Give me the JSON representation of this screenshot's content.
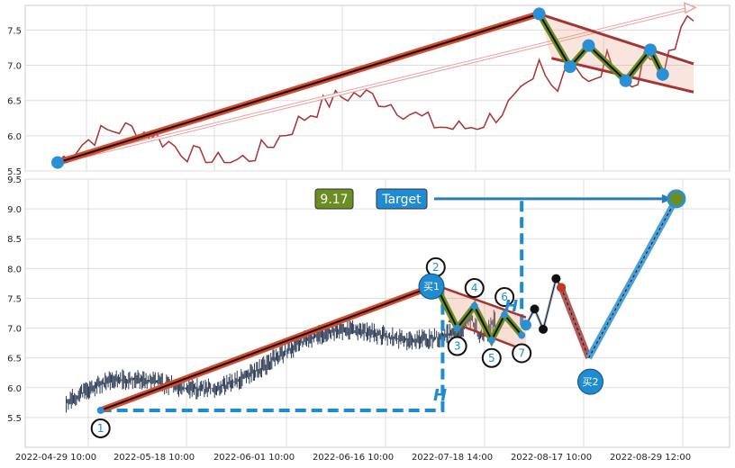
{
  "chart_data": [
    {
      "type": "line",
      "panel": "top",
      "ylim": [
        5.5,
        7.85
      ],
      "yticks": [
        "5.5",
        "6.0",
        "6.5",
        "7.0",
        "7.5"
      ],
      "grid": true,
      "price_series_color": "#a83232",
      "pattern_points": [
        [
          0,
          5.62
        ],
        [
          78,
          7.73
        ],
        [
          83,
          6.98
        ],
        [
          86,
          7.28
        ],
        [
          92,
          6.78
        ],
        [
          96,
          7.22
        ],
        [
          98,
          6.87
        ]
      ],
      "trend_line": [
        [
          0,
          5.62
        ],
        [
          78,
          7.73
        ]
      ],
      "target_arrow": [
        [
          0,
          5.62
        ],
        [
          103,
          7.82
        ]
      ]
    },
    {
      "type": "line",
      "panel": "bottom",
      "ylim": [
        5.0,
        9.5
      ],
      "yticks": [
        "5.5",
        "6.0",
        "6.5",
        "7.0",
        "7.5",
        "8.0",
        "8.5",
        "9.0",
        "9.5"
      ],
      "x_tick_labels": [
        "2022-04-29 10:00",
        "2022-05-18 10:00",
        "2022-06-01 10:00",
        "2022-06-16 10:00",
        "2022-07-18 14:00",
        "2022-08-17 10:00",
        "2022-08-29 12:00"
      ],
      "grid": true,
      "candles_color": "#2b3a55",
      "pattern_points": [
        {
          "label": "1",
          "x": 5,
          "y": 5.62
        },
        {
          "label": "2",
          "x": 44,
          "y": 7.72
        },
        {
          "label": "3",
          "x": 46.5,
          "y": 7.0
        },
        {
          "label": "4",
          "x": 48.5,
          "y": 7.37
        },
        {
          "label": "5",
          "x": 50.5,
          "y": 6.8
        },
        {
          "label": "6",
          "x": 52,
          "y": 7.22
        },
        {
          "label": "7",
          "x": 54,
          "y": 6.88
        }
      ],
      "buy_points": [
        {
          "label": "买1",
          "x": 43.5,
          "y": 7.7
        },
        {
          "label": "买2",
          "x": 62,
          "y": 6.1
        }
      ],
      "after_path": [
        [
          54.5,
          7.05
        ],
        [
          55.5,
          7.32
        ],
        [
          56.5,
          6.98
        ],
        [
          58,
          7.83
        ],
        [
          58.6,
          7.68
        ],
        [
          61.8,
          6.5
        ],
        [
          72,
          9.17
        ]
      ],
      "neckline": [
        [
          5,
          5.62
        ],
        [
          44.8,
          5.62
        ],
        [
          44.8,
          7.72
        ]
      ],
      "h_projection": [
        [
          54,
          7.05
        ],
        [
          54,
          9.17
        ]
      ],
      "target_value": "9.17",
      "target_label": "Target",
      "target_x": 72,
      "target_y": 9.17,
      "h_label": "H"
    }
  ]
}
